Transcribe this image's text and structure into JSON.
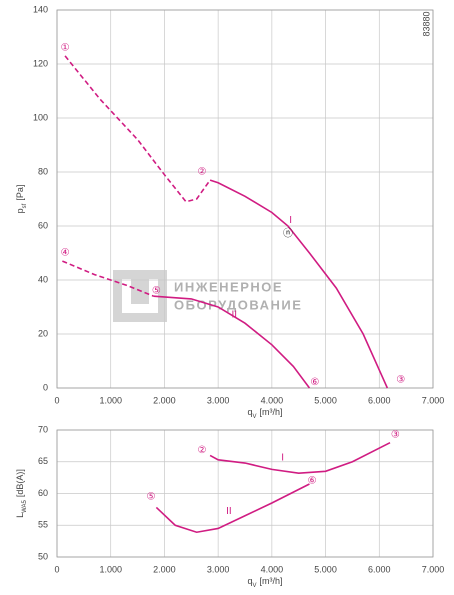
{
  "chart_data": [
    {
      "type": "line",
      "code": "83880",
      "ylabel": {
        "main": "p",
        "sub": "sf",
        "unit": "[Pa]"
      },
      "xlabel": {
        "main": "q",
        "sub": "V",
        "unit": "[m³/h]"
      },
      "xlim": [
        0,
        7000
      ],
      "ylim": [
        0,
        140
      ],
      "xticks": [
        0,
        {
          "value": 1000,
          "label": "1.000"
        },
        {
          "value": 2000,
          "label": "2.000"
        },
        {
          "value": 3000,
          "label": "3.000"
        },
        {
          "value": 4000,
          "label": "4.000"
        },
        {
          "value": 5000,
          "label": "5.000"
        },
        {
          "value": 6000,
          "label": "6.000"
        },
        {
          "value": 7000,
          "label": "7.000"
        }
      ],
      "yticks": [
        0,
        20,
        40,
        60,
        80,
        100,
        120,
        140
      ],
      "grid": true,
      "watermark": [
        "ИНЖЕНЕРНОЕ",
        "ОБОРУДОВАНИЕ"
      ],
      "series": [
        {
          "color": "#d01c82",
          "dashed": true,
          "x": [
            150,
            800,
            1500,
            2000,
            2400,
            2600,
            2850
          ],
          "values": [
            123,
            107,
            92,
            79,
            69,
            70,
            77
          ]
        },
        {
          "color": "#d01c82",
          "dashed": false,
          "x": [
            2850,
            3000,
            3500,
            4000,
            4300,
            4700,
            5200,
            5700,
            6150
          ],
          "values": [
            77,
            76,
            71,
            65,
            60,
            50,
            37,
            20,
            0
          ]
        },
        {
          "color": "#d01c82",
          "dashed": true,
          "x": [
            100,
            700,
            1300,
            1800
          ],
          "values": [
            47,
            42,
            38,
            34
          ]
        },
        {
          "color": "#d01c82",
          "dashed": false,
          "x": [
            1800,
            2500,
            3000,
            3500,
            4000,
            4400,
            4700
          ],
          "values": [
            34,
            33,
            30,
            24,
            16,
            8,
            0
          ]
        }
      ],
      "annotations": [
        {
          "text": "①",
          "x": 150,
          "y": 126
        },
        {
          "text": "②",
          "x": 2700,
          "y": 80
        },
        {
          "text": "③",
          "x": 6400,
          "y": 3
        },
        {
          "text": "④",
          "x": 150,
          "y": 50
        },
        {
          "text": "⑤",
          "x": 1850,
          "y": 36
        },
        {
          "text": "⑥",
          "x": 4800,
          "y": 2
        },
        {
          "text": "I",
          "x": 4350,
          "y": 62
        },
        {
          "text": "II",
          "x": 3300,
          "y": 27
        },
        {
          "text": "ⓝ",
          "x": 4300,
          "y": 57
        }
      ]
    },
    {
      "type": "line",
      "ylabel": {
        "main": "L",
        "sub": "WA5",
        "unit": "[dB(A)]"
      },
      "xlabel": {
        "main": "q",
        "sub": "V",
        "unit": "[m³/h]"
      },
      "xlim": [
        0,
        7000
      ],
      "ylim": [
        50,
        70
      ],
      "xticks": [
        0,
        {
          "value": 1000,
          "label": "1.000"
        },
        {
          "value": 2000,
          "label": "2.000"
        },
        {
          "value": 3000,
          "label": "3.000"
        },
        {
          "value": 4000,
          "label": "4.000"
        },
        {
          "value": 5000,
          "label": "5.000"
        },
        {
          "value": 6000,
          "label": "6.000"
        },
        {
          "value": 7000,
          "label": "7.000"
        }
      ],
      "yticks": [
        50,
        55,
        60,
        65,
        70
      ],
      "grid": true,
      "series": [
        {
          "color": "#d01c82",
          "dashed": false,
          "x": [
            2850,
            3000,
            3500,
            4000,
            4500,
            5000,
            5500,
            6200
          ],
          "values": [
            66,
            65.3,
            64.8,
            63.8,
            63.2,
            63.5,
            65,
            68
          ]
        },
        {
          "color": "#d01c82",
          "dashed": false,
          "x": [
            1850,
            2200,
            2600,
            3000,
            3500,
            4000,
            4700
          ],
          "values": [
            57.8,
            55,
            53.9,
            54.5,
            56.5,
            58.5,
            61.5
          ]
        }
      ],
      "annotations": [
        {
          "text": "②",
          "x": 2700,
          "y": 66.8
        },
        {
          "text": "③",
          "x": 6300,
          "y": 69.2
        },
        {
          "text": "⑤",
          "x": 1750,
          "y": 59.5
        },
        {
          "text": "⑥",
          "x": 4750,
          "y": 62
        },
        {
          "text": "I",
          "x": 4200,
          "y": 65.6
        },
        {
          "text": "II",
          "x": 3200,
          "y": 57.2
        }
      ]
    }
  ]
}
